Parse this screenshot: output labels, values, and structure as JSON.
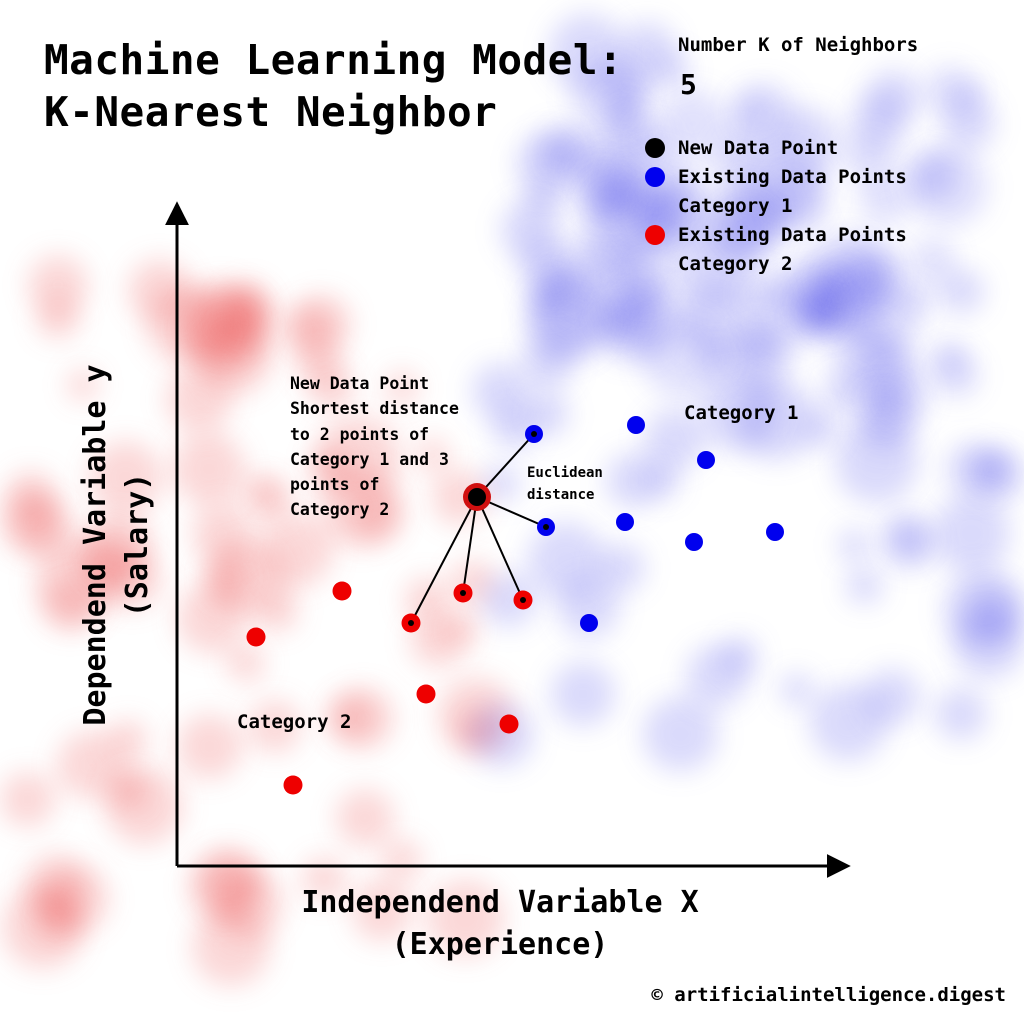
{
  "title": {
    "line1": "Machine Learning Model:",
    "line2": "K-Nearest Neighbor"
  },
  "k": {
    "label": "Number K of Neighbors",
    "value": "5"
  },
  "legend": [
    {
      "line1": "New Data Point",
      "line2": "",
      "color": "#000000"
    },
    {
      "line1": "Existing Data Points",
      "line2": "Category 1",
      "color": "#0000ee"
    },
    {
      "line1": "Existing Data Points",
      "line2": "Category 2",
      "color": "#ee0000"
    }
  ],
  "annotation": {
    "lines": [
      "New Data Point",
      "Shortest distance",
      "to 2 points of",
      "Category 1 and 3",
      "points of",
      "Category 2"
    ]
  },
  "euclidean": {
    "line1": "Euclidean",
    "line2": "distance"
  },
  "category_labels": {
    "cat1": "Category 1",
    "cat2": "Category 2"
  },
  "axes": {
    "x_line1": "Independend Variable X",
    "x_line2": "(Experience)",
    "y_line1": "Dependend Variable y",
    "y_line2": "(Salary)"
  },
  "copyright": "© artificialintelligence.digest",
  "colors": {
    "category1": "#0000ee",
    "category2": "#ee0000",
    "new_point": "#000000",
    "neighbor_ring": "#d01010"
  }
}
